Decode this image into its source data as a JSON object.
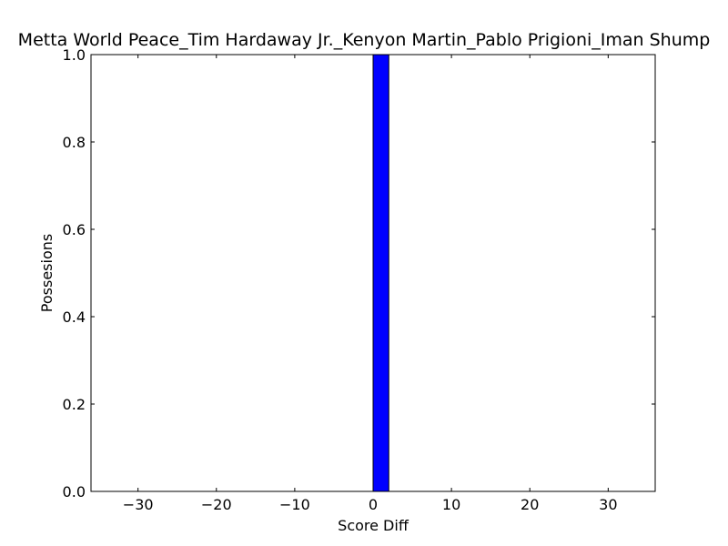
{
  "chart_data": {
    "type": "bar",
    "title": "Metta World Peace_Tim Hardaway Jr._Kenyon Martin_Pablo Prigioni_Iman Shump",
    "xlabel": "Score Diff",
    "ylabel": "Possesions",
    "xlim": [
      -36,
      36
    ],
    "ylim": [
      0,
      1.0
    ],
    "x_ticks": [
      -30,
      -20,
      -10,
      0,
      10,
      20,
      30
    ],
    "x_tick_labels": [
      "−30",
      "−20",
      "−10",
      "0",
      "10",
      "20",
      "30"
    ],
    "y_ticks": [
      0.0,
      0.2,
      0.4,
      0.6,
      0.8,
      1.0
    ],
    "y_tick_labels": [
      "0.0",
      "0.2",
      "0.4",
      "0.6",
      "0.8",
      "1.0"
    ],
    "grid": false,
    "bars": [
      {
        "x_start": 0,
        "x_end": 2,
        "value": 1.0
      }
    ],
    "bar_color": "#0000ff",
    "edge_color": "#000000"
  }
}
